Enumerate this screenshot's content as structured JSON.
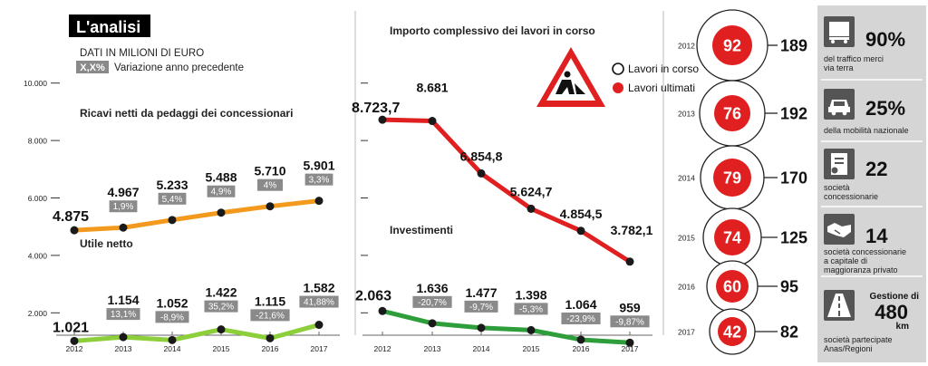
{
  "header": {
    "title": "L'analisi",
    "units": "DATI IN MILIONI DI EURO",
    "variation_badge": "X,X%",
    "variation_label": "Variazione anno precedente"
  },
  "left_axis": {
    "ticks": [
      "10.000",
      "8.000",
      "6.000",
      "4.000",
      "2.000"
    ]
  },
  "years": [
    "2012",
    "2013",
    "2014",
    "2015",
    "2016",
    "2017"
  ],
  "chart_data": [
    {
      "type": "line",
      "title": "Ricavi netti da pedaggi dei concessionari",
      "categories": [
        "2012",
        "2013",
        "2014",
        "2015",
        "2016",
        "2017"
      ],
      "values": [
        4875,
        4967,
        5233,
        5488,
        5710,
        5901
      ],
      "value_labels": [
        "4.875",
        "4.967",
        "5.233",
        "5.488",
        "5.710",
        "5.901"
      ],
      "changes": [
        "",
        "1,9%",
        "5,4%",
        "4,9%",
        "4%",
        "3,3%"
      ],
      "ylim": [
        0,
        10000
      ],
      "color": "#f39a1e"
    },
    {
      "type": "line",
      "title": "Utile netto",
      "categories": [
        "2012",
        "2013",
        "2014",
        "2015",
        "2016",
        "2017"
      ],
      "values": [
        1021,
        1154,
        1052,
        1422,
        1115,
        1582
      ],
      "value_labels": [
        "1.021",
        "1.154",
        "1.052",
        "1.422",
        "1.115",
        "1.582"
      ],
      "changes": [
        "",
        "13,1%",
        "-8,9%",
        "35,2%",
        "-21,6%",
        "41,88%"
      ],
      "ylim": [
        0,
        10000
      ],
      "color": "#8ccf3a"
    },
    {
      "type": "line",
      "title": "Importo complessivo dei lavori in corso",
      "categories": [
        "2012",
        "2013",
        "2014",
        "2015",
        "2016",
        "2017"
      ],
      "values": [
        8723.7,
        8681,
        6854.8,
        5624.7,
        4854.5,
        3782.1
      ],
      "value_labels": [
        "8.723,7",
        "8.681",
        "6.854,8",
        "5.624,7",
        "4.854,5",
        "3.782,1"
      ],
      "ylim": [
        0,
        10000
      ],
      "color": "#e02020"
    },
    {
      "type": "line",
      "title": "Investimenti",
      "categories": [
        "2012",
        "2013",
        "2014",
        "2015",
        "2016",
        "2017"
      ],
      "values": [
        2063,
        1636,
        1477,
        1398,
        1064,
        959
      ],
      "value_labels": [
        "2.063",
        "1.636",
        "1.477",
        "1.398",
        "1.064",
        "959"
      ],
      "changes": [
        "",
        "-20,7%",
        "-9,7%",
        "-5,3%",
        "-23,9%",
        "-9,87%"
      ],
      "ylim": [
        0,
        10000
      ],
      "color": "#2e9e3a"
    },
    {
      "type": "table",
      "legend": {
        "open": "Lavori in corso",
        "done": "Lavori ultimati"
      },
      "rows": [
        {
          "year": "2012",
          "done": "92",
          "open": "189"
        },
        {
          "year": "2013",
          "done": "76",
          "open": "192"
        },
        {
          "year": "2014",
          "done": "79",
          "open": "170"
        },
        {
          "year": "2015",
          "done": "74",
          "open": "125"
        },
        {
          "year": "2016",
          "done": "60",
          "open": "95"
        },
        {
          "year": "2017",
          "done": "42",
          "open": "82"
        }
      ]
    }
  ],
  "stats": [
    {
      "icon": "truck-icon",
      "value": "90%",
      "desc": [
        "del traffico merci",
        "via terra"
      ]
    },
    {
      "icon": "car-icon",
      "value": "25%",
      "desc": [
        "della mobilità nazionale"
      ]
    },
    {
      "icon": "certificate-icon",
      "value": "22",
      "desc": [
        "società",
        "concessionarie"
      ]
    },
    {
      "icon": "handshake-icon",
      "value": "14",
      "desc": [
        "società concessionarie",
        "a capitale di",
        "maggioranza privato"
      ]
    },
    {
      "icon": "road-icon",
      "prefix": "Gestione di",
      "value": "480",
      "unit": "km",
      "desc": [
        "società partecipate",
        "Anas/Regioni"
      ]
    }
  ]
}
